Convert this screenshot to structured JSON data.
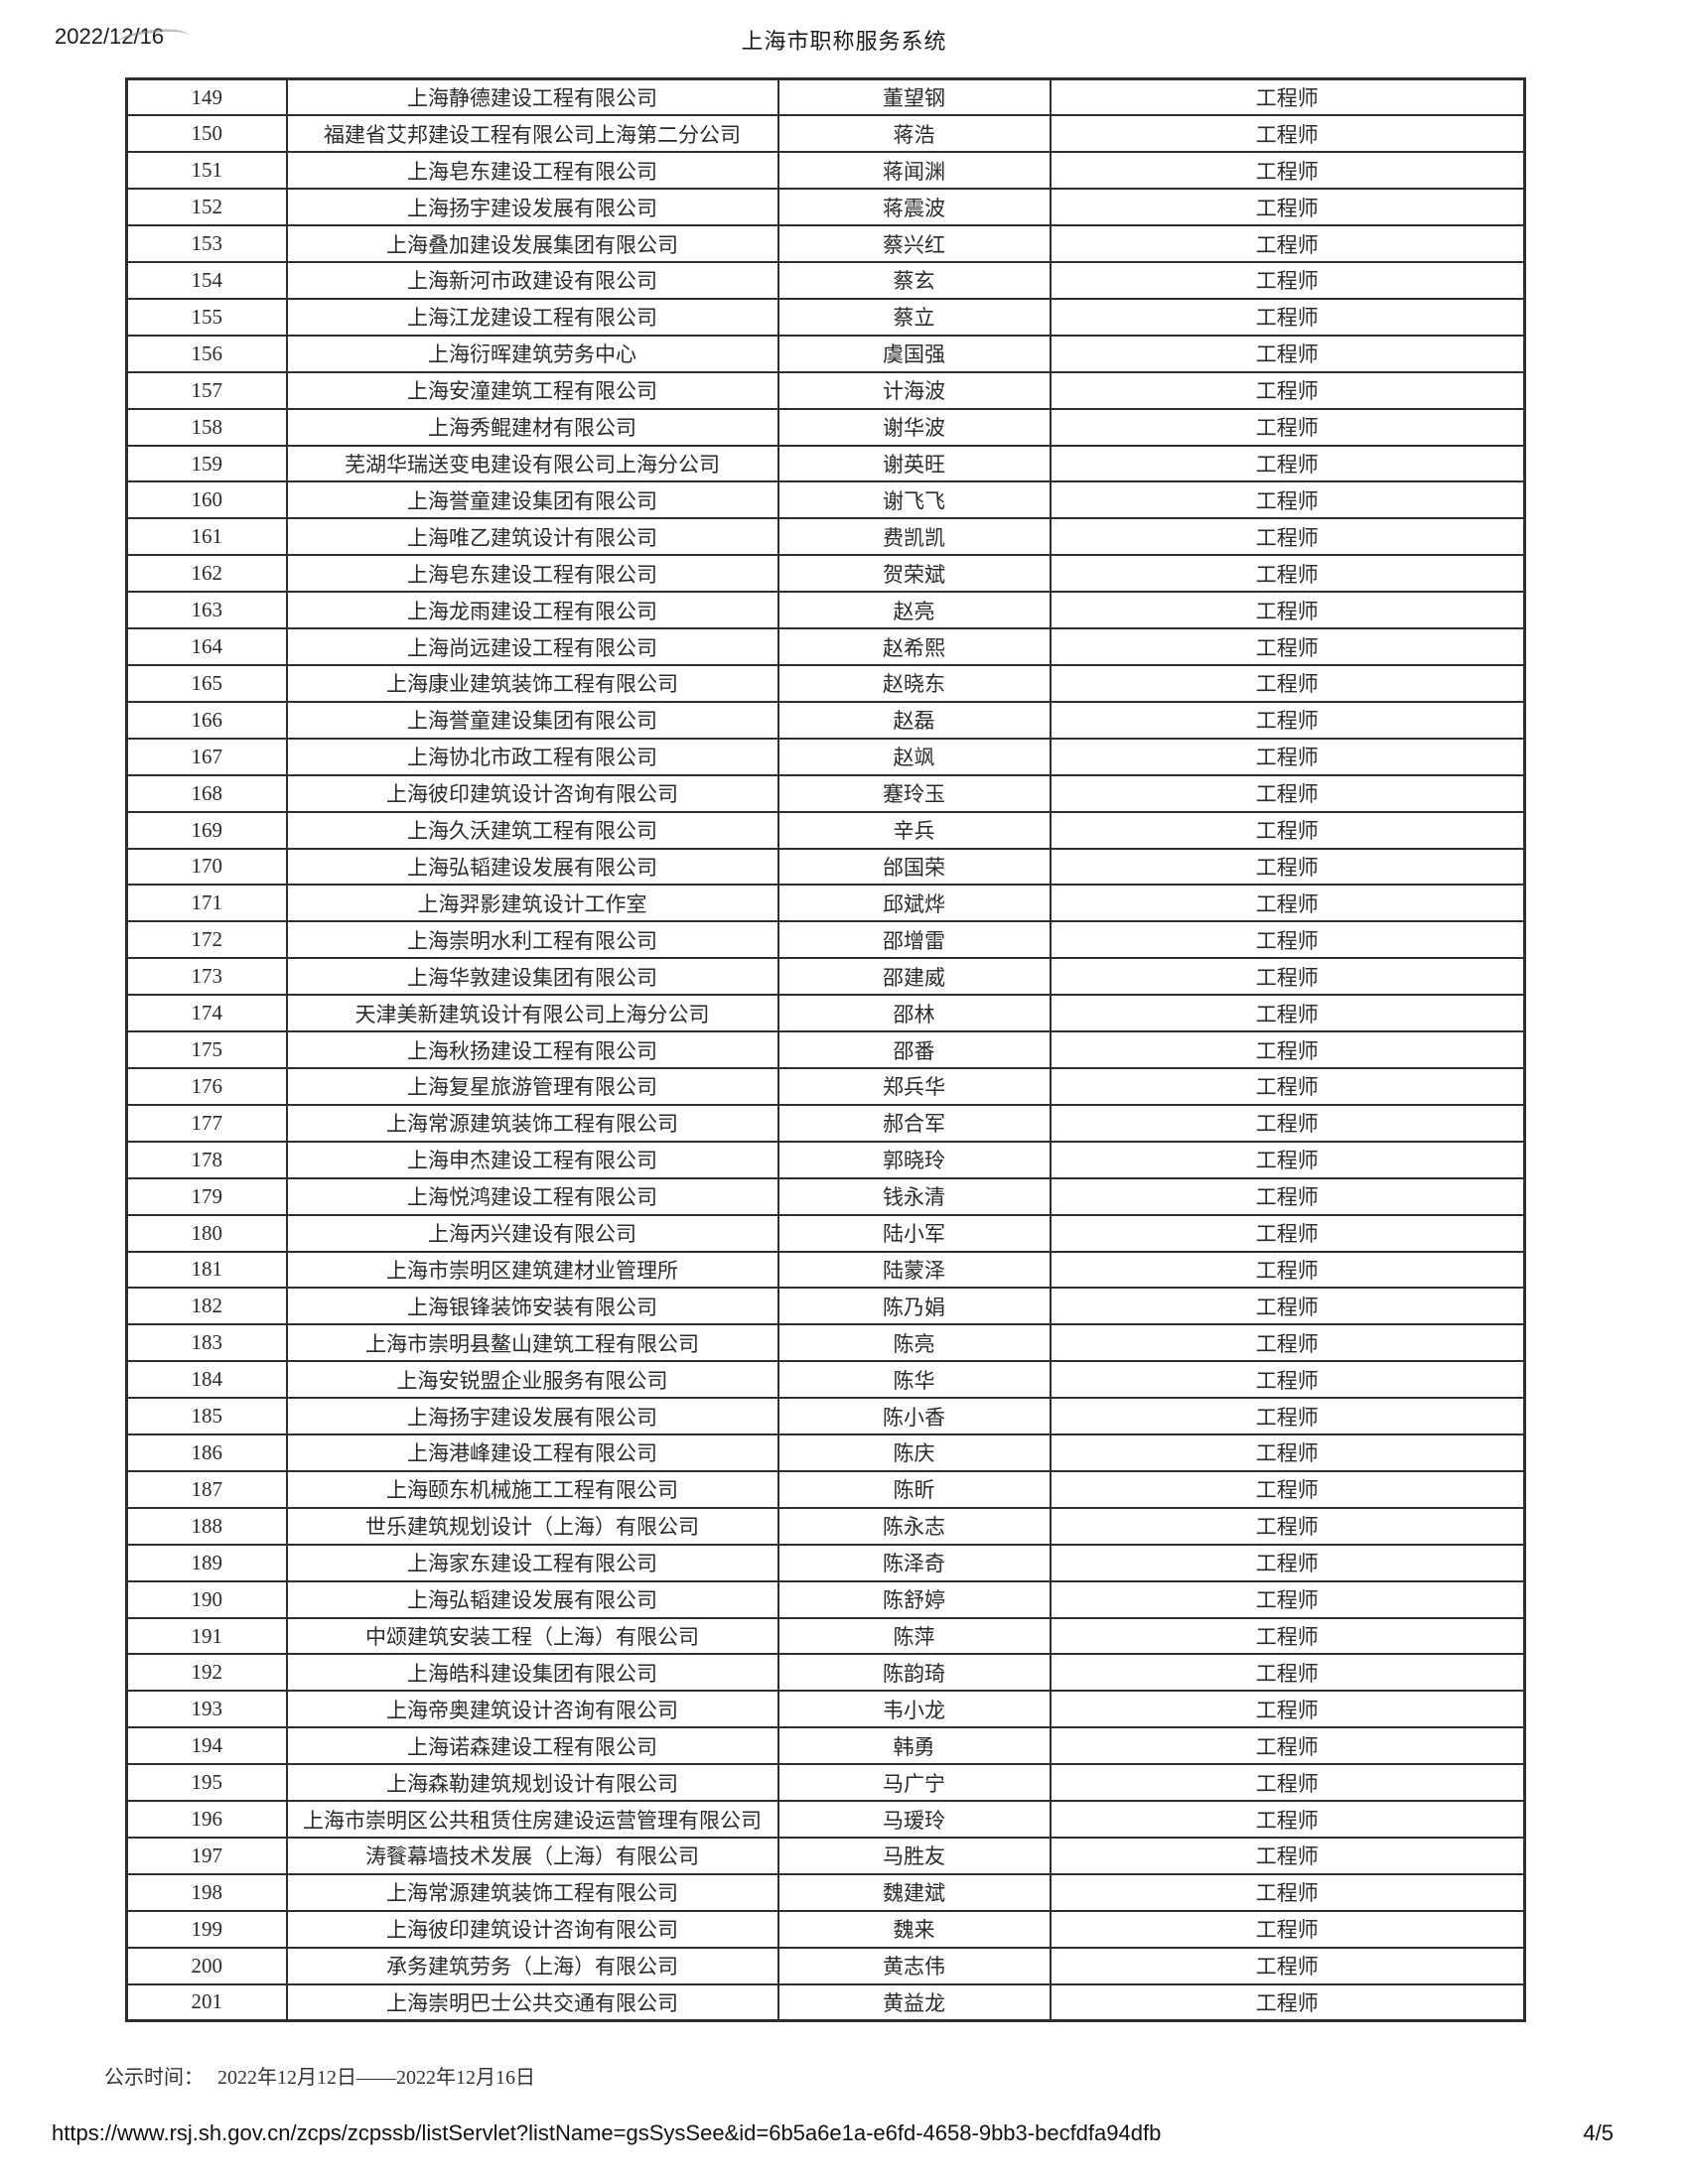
{
  "print_header": {
    "date": "2022/12/16",
    "title": "上海市职称服务系统"
  },
  "publicity": {
    "label": "公示时间：",
    "value": "2022年12月12日——2022年12月16日"
  },
  "print_footer": {
    "url": "https://www.rsj.sh.gov.cn/zcps/zcpssb/listServlet?listName=gsSysSee&id=6b5a6e1a-e6fd-4658-9bb3-becfdfa94dfb",
    "page_number": "4/5"
  },
  "table": {
    "rows": [
      {
        "no": "149",
        "company": "上海静德建设工程有限公司",
        "name": "董望钢",
        "title": "工程师"
      },
      {
        "no": "150",
        "company": "福建省艾邦建设工程有限公司上海第二分公司",
        "name": "蒋浩",
        "title": "工程师"
      },
      {
        "no": "151",
        "company": "上海皂东建设工程有限公司",
        "name": "蒋闻渊",
        "title": "工程师"
      },
      {
        "no": "152",
        "company": "上海扬宇建设发展有限公司",
        "name": "蒋震波",
        "title": "工程师"
      },
      {
        "no": "153",
        "company": "上海叠加建设发展集团有限公司",
        "name": "蔡兴红",
        "title": "工程师"
      },
      {
        "no": "154",
        "company": "上海新河市政建设有限公司",
        "name": "蔡玄",
        "title": "工程师"
      },
      {
        "no": "155",
        "company": "上海江龙建设工程有限公司",
        "name": "蔡立",
        "title": "工程师"
      },
      {
        "no": "156",
        "company": "上海衍晖建筑劳务中心",
        "name": "虞国强",
        "title": "工程师"
      },
      {
        "no": "157",
        "company": "上海安潼建筑工程有限公司",
        "name": "计海波",
        "title": "工程师"
      },
      {
        "no": "158",
        "company": "上海秀鲲建材有限公司",
        "name": "谢华波",
        "title": "工程师"
      },
      {
        "no": "159",
        "company": "芜湖华瑞送变电建设有限公司上海分公司",
        "name": "谢英旺",
        "title": "工程师"
      },
      {
        "no": "160",
        "company": "上海誉童建设集团有限公司",
        "name": "谢飞飞",
        "title": "工程师"
      },
      {
        "no": "161",
        "company": "上海唯乙建筑设计有限公司",
        "name": "费凯凯",
        "title": "工程师"
      },
      {
        "no": "162",
        "company": "上海皂东建设工程有限公司",
        "name": "贺荣斌",
        "title": "工程师"
      },
      {
        "no": "163",
        "company": "上海龙雨建设工程有限公司",
        "name": "赵亮",
        "title": "工程师"
      },
      {
        "no": "164",
        "company": "上海尚远建设工程有限公司",
        "name": "赵希熙",
        "title": "工程师"
      },
      {
        "no": "165",
        "company": "上海康业建筑装饰工程有限公司",
        "name": "赵晓东",
        "title": "工程师"
      },
      {
        "no": "166",
        "company": "上海誉童建设集团有限公司",
        "name": "赵磊",
        "title": "工程师"
      },
      {
        "no": "167",
        "company": "上海协北市政工程有限公司",
        "name": "赵飒",
        "title": "工程师"
      },
      {
        "no": "168",
        "company": "上海彼印建筑设计咨询有限公司",
        "name": "蹇玲玉",
        "title": "工程师"
      },
      {
        "no": "169",
        "company": "上海久沃建筑工程有限公司",
        "name": "辛兵",
        "title": "工程师"
      },
      {
        "no": "170",
        "company": "上海弘韬建设发展有限公司",
        "name": "邰国荣",
        "title": "工程师"
      },
      {
        "no": "171",
        "company": "上海羿影建筑设计工作室",
        "name": "邱斌烨",
        "title": "工程师"
      },
      {
        "no": "172",
        "company": "上海崇明水利工程有限公司",
        "name": "邵增雷",
        "title": "工程师"
      },
      {
        "no": "173",
        "company": "上海华敦建设集团有限公司",
        "name": "邵建威",
        "title": "工程师"
      },
      {
        "no": "174",
        "company": "天津美新建筑设计有限公司上海分公司",
        "name": "邵林",
        "title": "工程师"
      },
      {
        "no": "175",
        "company": "上海秋扬建设工程有限公司",
        "name": "邵番",
        "title": "工程师"
      },
      {
        "no": "176",
        "company": "上海复星旅游管理有限公司",
        "name": "郑兵华",
        "title": "工程师"
      },
      {
        "no": "177",
        "company": "上海常源建筑装饰工程有限公司",
        "name": "郝合军",
        "title": "工程师"
      },
      {
        "no": "178",
        "company": "上海申杰建设工程有限公司",
        "name": "郭晓玲",
        "title": "工程师"
      },
      {
        "no": "179",
        "company": "上海悦鸿建设工程有限公司",
        "name": "钱永清",
        "title": "工程师"
      },
      {
        "no": "180",
        "company": "上海丙兴建设有限公司",
        "name": "陆小军",
        "title": "工程师"
      },
      {
        "no": "181",
        "company": "上海市崇明区建筑建材业管理所",
        "name": "陆蒙泽",
        "title": "工程师"
      },
      {
        "no": "182",
        "company": "上海银锋装饰安装有限公司",
        "name": "陈乃娟",
        "title": "工程师"
      },
      {
        "no": "183",
        "company": "上海市崇明县鳌山建筑工程有限公司",
        "name": "陈亮",
        "title": "工程师"
      },
      {
        "no": "184",
        "company": "上海安锐盟企业服务有限公司",
        "name": "陈华",
        "title": "工程师"
      },
      {
        "no": "185",
        "company": "上海扬宇建设发展有限公司",
        "name": "陈小香",
        "title": "工程师"
      },
      {
        "no": "186",
        "company": "上海港峰建设工程有限公司",
        "name": "陈庆",
        "title": "工程师"
      },
      {
        "no": "187",
        "company": "上海颐东机械施工工程有限公司",
        "name": "陈昕",
        "title": "工程师"
      },
      {
        "no": "188",
        "company": "世乐建筑规划设计（上海）有限公司",
        "name": "陈永志",
        "title": "工程师"
      },
      {
        "no": "189",
        "company": "上海家东建设工程有限公司",
        "name": "陈泽奇",
        "title": "工程师"
      },
      {
        "no": "190",
        "company": "上海弘韬建设发展有限公司",
        "name": "陈舒婷",
        "title": "工程师"
      },
      {
        "no": "191",
        "company": "中颂建筑安装工程（上海）有限公司",
        "name": "陈萍",
        "title": "工程师"
      },
      {
        "no": "192",
        "company": "上海皓科建设集团有限公司",
        "name": "陈韵琦",
        "title": "工程师"
      },
      {
        "no": "193",
        "company": "上海帝奥建筑设计咨询有限公司",
        "name": "韦小龙",
        "title": "工程师"
      },
      {
        "no": "194",
        "company": "上海诺森建设工程有限公司",
        "name": "韩勇",
        "title": "工程师"
      },
      {
        "no": "195",
        "company": "上海森勒建筑规划设计有限公司",
        "name": "马广宁",
        "title": "工程师"
      },
      {
        "no": "196",
        "company": "上海市崇明区公共租赁住房建设运营管理有限公司",
        "name": "马瑷玲",
        "title": "工程师"
      },
      {
        "no": "197",
        "company": "涛餮幕墙技术发展（上海）有限公司",
        "name": "马胜友",
        "title": "工程师"
      },
      {
        "no": "198",
        "company": "上海常源建筑装饰工程有限公司",
        "name": "魏建斌",
        "title": "工程师"
      },
      {
        "no": "199",
        "company": "上海彼印建筑设计咨询有限公司",
        "name": "魏来",
        "title": "工程师"
      },
      {
        "no": "200",
        "company": "承务建筑劳务（上海）有限公司",
        "name": "黄志伟",
        "title": "工程师"
      },
      {
        "no": "201",
        "company": "上海崇明巴士公共交通有限公司",
        "name": "黄益龙",
        "title": "工程师"
      }
    ]
  }
}
